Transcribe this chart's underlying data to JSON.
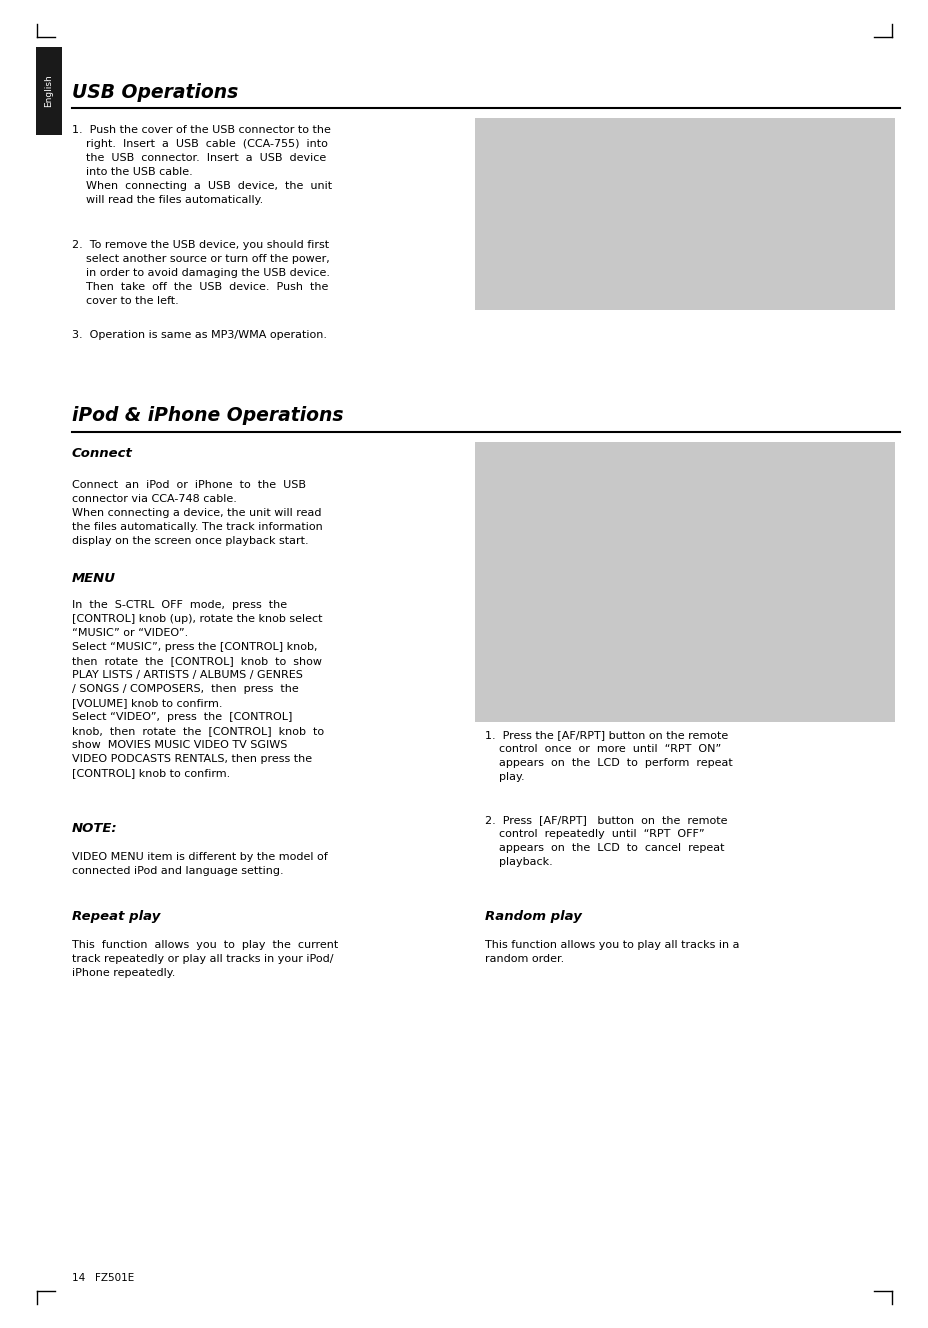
{
  "bg_color": "#ffffff",
  "page_width": 9.29,
  "page_height": 13.28,
  "image_color": "#c8c8c8",
  "sidebar_color": "#1a1a1a",
  "sidebar_text": "English",
  "section1_title": "USB Operations",
  "section2_title": "iPod & iPhone Operations",
  "footer_text": "14   FZ501E"
}
